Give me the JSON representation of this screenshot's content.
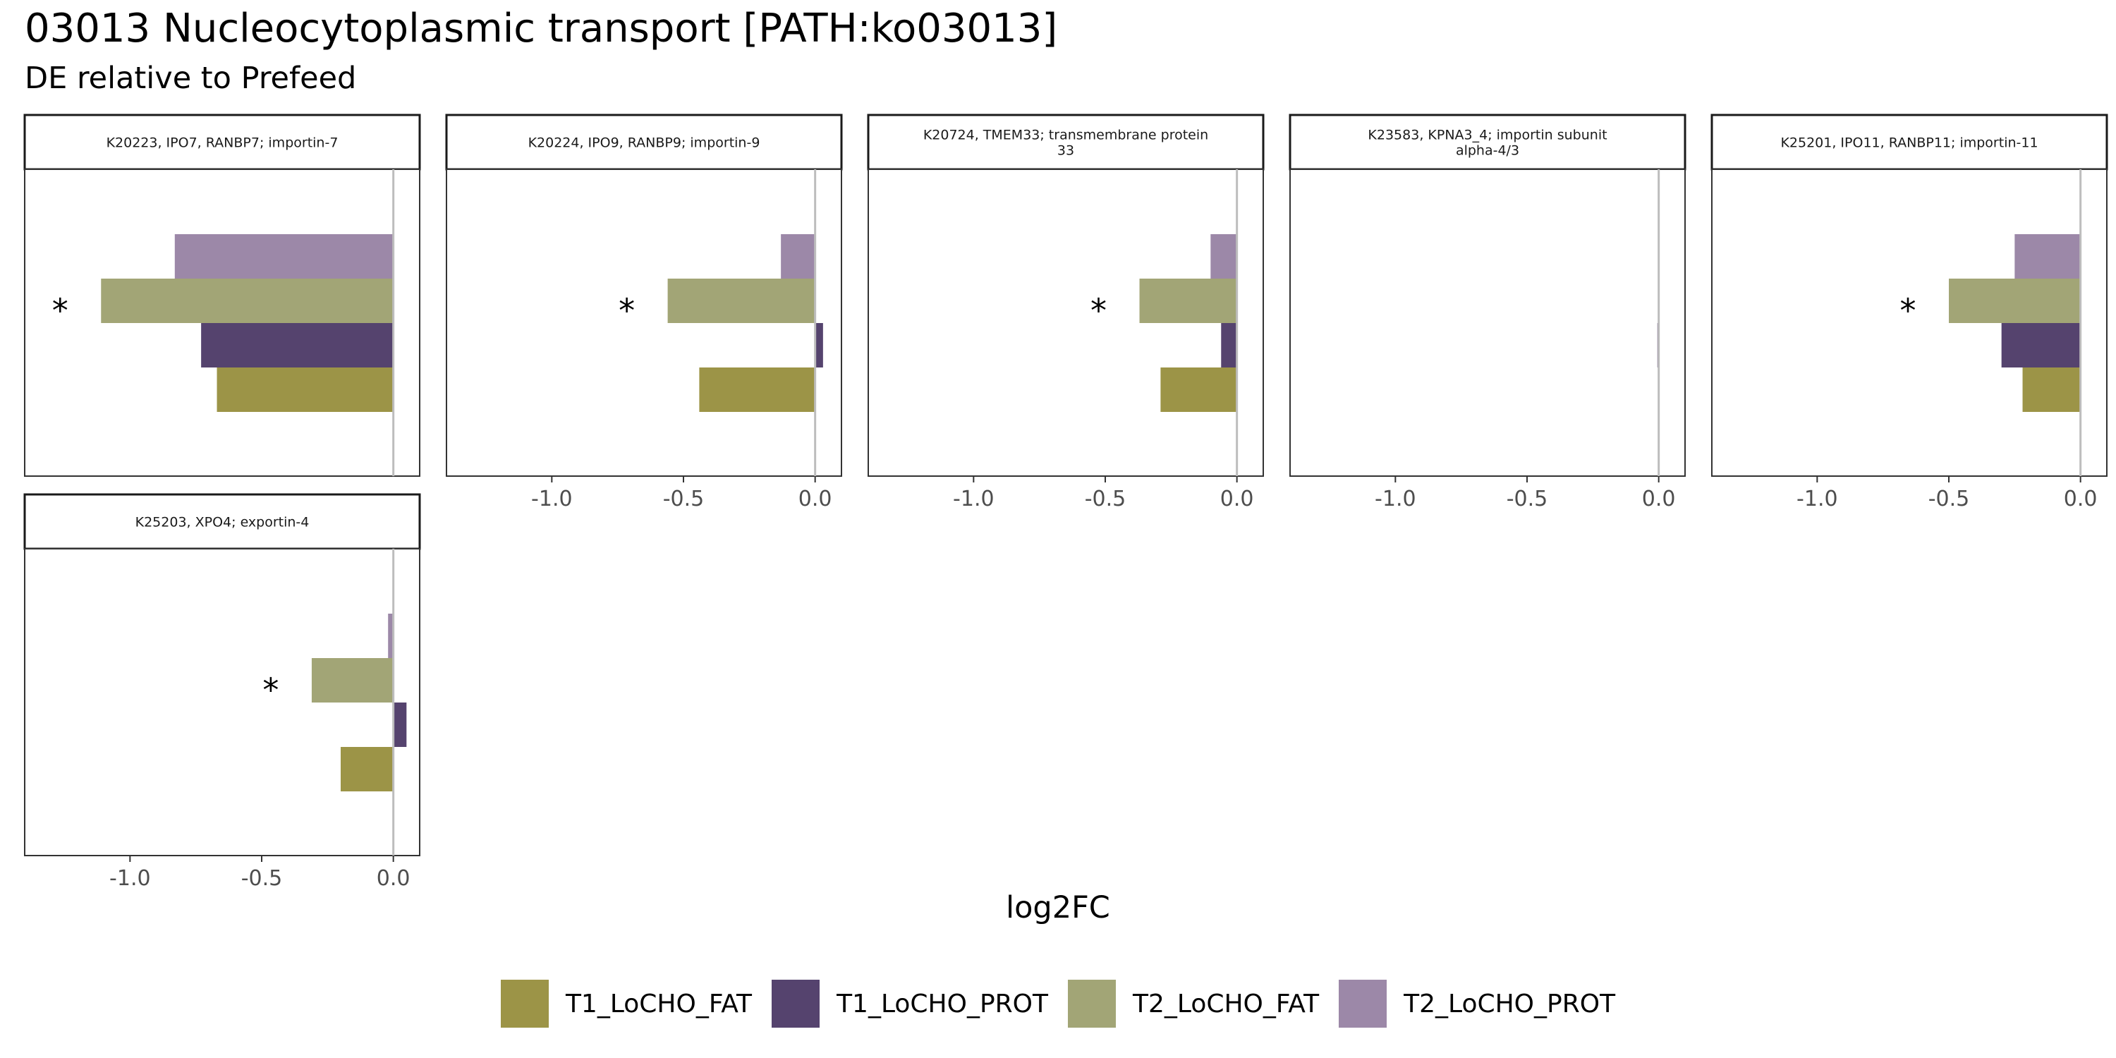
{
  "title": "03013 Nucleocytoplasmic transport [PATH:ko03013]",
  "subtitle": "DE relative to Prefeed",
  "colors": {
    "T1_LoCHO_FAT": "#9c9447",
    "T1_LoCHO_PROT": "#55436e",
    "T2_LoCHO_FAT": "#a2a576",
    "T2_LoCHO_PROT": "#9c88a8"
  },
  "chart_data": {
    "type": "bar",
    "orientation": "horizontal",
    "xlabel": "log2FC",
    "xlim": [
      -1.4,
      0.1
    ],
    "xticks": [
      {
        "value": -1.0,
        "label": "-1.0"
      },
      {
        "value": -0.5,
        "label": "-0.5"
      },
      {
        "value": 0.0,
        "label": "0.0"
      }
    ],
    "categories": [
      "T2_LoCHO_PROT",
      "T2_LoCHO_FAT",
      "T1_LoCHO_PROT",
      "T1_LoCHO_FAT"
    ],
    "legend": {
      "position": "bottom",
      "entries": [
        "T1_LoCHO_FAT",
        "T1_LoCHO_PROT",
        "T2_LoCHO_FAT",
        "T2_LoCHO_PROT"
      ]
    },
    "panels": [
      {
        "strip": [
          "K20223, IPO7, RANBP7; importin-7"
        ],
        "values": {
          "T2_LoCHO_PROT": -0.83,
          "T2_LoCHO_FAT": -1.11,
          "T1_LoCHO_PROT": -0.73,
          "T1_LoCHO_FAT": -0.67
        },
        "significant": [
          "T2_LoCHO_FAT"
        ]
      },
      {
        "strip": [
          "K20224, IPO9, RANBP9; importin-9"
        ],
        "values": {
          "T2_LoCHO_PROT": -0.13,
          "T2_LoCHO_FAT": -0.56,
          "T1_LoCHO_PROT": 0.03,
          "T1_LoCHO_FAT": -0.44
        },
        "significant": [
          "T2_LoCHO_FAT"
        ]
      },
      {
        "strip": [
          "K20724, TMEM33; transmembrane protein",
          "33"
        ],
        "values": {
          "T2_LoCHO_PROT": -0.1,
          "T2_LoCHO_FAT": -0.37,
          "T1_LoCHO_PROT": -0.06,
          "T1_LoCHO_FAT": -0.29
        },
        "significant": [
          "T2_LoCHO_FAT"
        ]
      },
      {
        "strip": [
          "K23583, KPNA3_4; importin subunit",
          "alpha-4/3"
        ],
        "values": {
          "T2_LoCHO_PROT": 0.0,
          "T2_LoCHO_FAT": 0.0,
          "T1_LoCHO_PROT": -0.005,
          "T1_LoCHO_FAT": 0.0
        },
        "significant": []
      },
      {
        "strip": [
          "K25201, IPO11, RANBP11; importin-11"
        ],
        "values": {
          "T2_LoCHO_PROT": -0.25,
          "T2_LoCHO_FAT": -0.5,
          "T1_LoCHO_PROT": -0.3,
          "T1_LoCHO_FAT": -0.22
        },
        "significant": [
          "T2_LoCHO_FAT"
        ]
      },
      {
        "strip": [
          "K25203, XPO4; exportin-4"
        ],
        "values": {
          "T2_LoCHO_PROT": -0.02,
          "T2_LoCHO_FAT": -0.31,
          "T1_LoCHO_PROT": 0.05,
          "T1_LoCHO_FAT": -0.2
        },
        "significant": [
          "T2_LoCHO_FAT"
        ]
      }
    ],
    "significance_marker": "*",
    "grid": false
  }
}
